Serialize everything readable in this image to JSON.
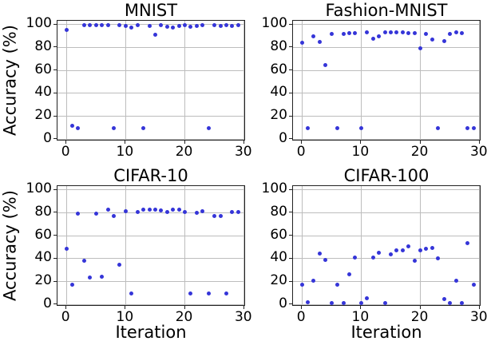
{
  "figure": {
    "background": "#ffffff"
  },
  "style": {
    "point_color": "#3535d8",
    "grid_color": "#bdbdbd",
    "spine_color": "#222222",
    "text_color": "#000000"
  },
  "chart_data": [
    {
      "type": "scatter",
      "title": "MNIST",
      "xlabel": "",
      "ylabel": "Accuracy (%)",
      "x": [
        0,
        1,
        2,
        3,
        4,
        5,
        6,
        7,
        8,
        9,
        10,
        11,
        12,
        13,
        14,
        15,
        16,
        17,
        18,
        19,
        20,
        21,
        22,
        23,
        24,
        25,
        26,
        27,
        28,
        29
      ],
      "values": [
        95.5,
        11.5,
        10,
        99.5,
        99.5,
        99.5,
        99.5,
        99.5,
        10,
        99.5,
        99,
        97.5,
        99.5,
        10,
        99,
        91,
        99.5,
        98,
        97.5,
        99,
        99.5,
        98,
        99,
        99.5,
        10,
        99.5,
        99,
        99.5,
        99,
        99.5
      ],
      "xlim": [
        -1.5,
        30.3
      ],
      "ylim": [
        -1.8,
        103.3
      ],
      "xticks": [
        0,
        10,
        20,
        30
      ],
      "yticks": [
        0,
        20,
        40,
        60,
        80,
        100
      ],
      "grid": true,
      "legend": null
    },
    {
      "type": "scatter",
      "title": "Fashion-MNIST",
      "xlabel": "",
      "ylabel": "",
      "x": [
        0,
        1,
        2,
        3,
        4,
        5,
        6,
        7,
        8,
        9,
        10,
        11,
        12,
        13,
        14,
        15,
        16,
        17,
        18,
        19,
        20,
        21,
        22,
        23,
        24,
        25,
        26,
        27,
        28,
        29
      ],
      "values": [
        84,
        10,
        90,
        85,
        64.5,
        91.5,
        10,
        91.5,
        92.5,
        92.5,
        10,
        93,
        87.5,
        89.5,
        93.5,
        93.5,
        93.5,
        93.5,
        92.5,
        92.5,
        79,
        92,
        87,
        10,
        85.5,
        91.5,
        93.5,
        92.5,
        10,
        10
      ],
      "xlim": [
        -1.5,
        30.3
      ],
      "ylim": [
        -1.8,
        103.3
      ],
      "xticks": [
        0,
        10,
        20,
        30
      ],
      "yticks": [
        0,
        20,
        40,
        60,
        80,
        100
      ],
      "grid": true,
      "legend": null
    },
    {
      "type": "scatter",
      "title": "CIFAR-10",
      "xlabel": "Iteration",
      "ylabel": "Accuracy (%)",
      "x": [
        0,
        1,
        2,
        3,
        4,
        5,
        6,
        7,
        8,
        9,
        10,
        11,
        12,
        13,
        14,
        15,
        16,
        17,
        18,
        19,
        20,
        21,
        22,
        23,
        24,
        25,
        26,
        27,
        28,
        29
      ],
      "values": [
        48.5,
        17.5,
        79,
        38,
        23.5,
        79.5,
        24,
        82.5,
        77,
        34.5,
        81.5,
        10,
        81,
        83,
        82.5,
        82.5,
        82,
        80.5,
        82.5,
        82.5,
        80.5,
        10,
        80,
        81.5,
        10,
        77.5,
        77.5,
        10,
        80.5,
        81
      ],
      "xlim": [
        -1.5,
        30.3
      ],
      "ylim": [
        -1.8,
        103.3
      ],
      "xticks": [
        0,
        10,
        20,
        30
      ],
      "yticks": [
        0,
        20,
        40,
        60,
        80,
        100
      ],
      "grid": true,
      "legend": null
    },
    {
      "type": "scatter",
      "title": "CIFAR-100",
      "xlabel": "Iteration",
      "ylabel": "",
      "x": [
        0,
        1,
        2,
        3,
        4,
        5,
        6,
        7,
        8,
        9,
        10,
        11,
        12,
        13,
        14,
        15,
        16,
        17,
        18,
        19,
        20,
        21,
        22,
        23,
        24,
        25,
        26,
        27,
        28,
        29
      ],
      "values": [
        17,
        2,
        21,
        44.5,
        39,
        1,
        17.5,
        1,
        26.5,
        41,
        1.5,
        5.5,
        41,
        45.5,
        1,
        44,
        47.5,
        47,
        50.5,
        38,
        47,
        49,
        49.5,
        40,
        5,
        1,
        21,
        1,
        53.5,
        17.5
      ],
      "xlim": [
        -1.5,
        30.3
      ],
      "ylim": [
        -1.8,
        103.3
      ],
      "xticks": [
        0,
        10,
        20,
        30
      ],
      "yticks": [
        0,
        20,
        40,
        60,
        80,
        100
      ],
      "grid": true,
      "legend": null
    }
  ]
}
